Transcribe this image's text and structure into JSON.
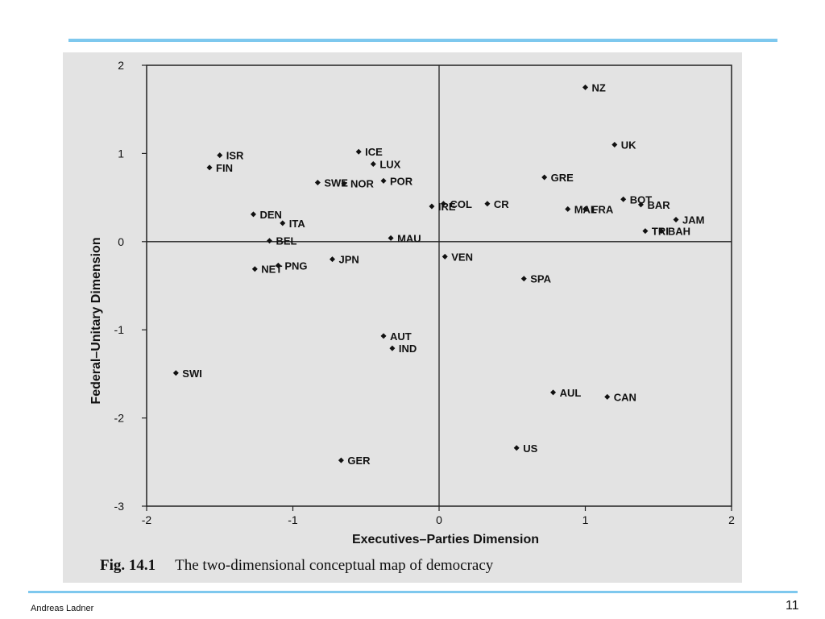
{
  "slide": {
    "author": "Andreas Ladner",
    "page_number": "11",
    "accent_color": "#7ec8ee"
  },
  "figure": {
    "number": "Fig. 14.1",
    "caption": "The two-dimensional conceptual map of democracy"
  },
  "chart_data": {
    "type": "scatter",
    "xlabel": "Executives–Parties Dimension",
    "ylabel": "Federal–Unitary Dimension",
    "xlim": [
      -2,
      2
    ],
    "ylim": [
      -3,
      2
    ],
    "x_ticks": [
      "-2",
      "-1",
      "0",
      "1",
      "2"
    ],
    "y_ticks": [
      "2",
      "1",
      "0",
      "-1",
      "-2",
      "-3"
    ],
    "grid": false,
    "zero_lines": true,
    "marker_color": "#111111",
    "points": [
      {
        "label": "NZ",
        "x": 1.0,
        "y": 1.75
      },
      {
        "label": "UK",
        "x": 1.2,
        "y": 1.1
      },
      {
        "label": "ISR",
        "x": -1.5,
        "y": 0.98
      },
      {
        "label": "FIN",
        "x": -1.57,
        "y": 0.84
      },
      {
        "label": "ICE",
        "x": -0.55,
        "y": 1.02
      },
      {
        "label": "LUX",
        "x": -0.45,
        "y": 0.88
      },
      {
        "label": "SWE",
        "x": -0.83,
        "y": 0.67
      },
      {
        "label": "NOR",
        "x": -0.65,
        "y": 0.66
      },
      {
        "label": "POR",
        "x": -0.38,
        "y": 0.69
      },
      {
        "label": "GRE",
        "x": 0.72,
        "y": 0.73
      },
      {
        "label": "BOT",
        "x": 1.26,
        "y": 0.48
      },
      {
        "label": "IRE",
        "x": -0.05,
        "y": 0.4
      },
      {
        "label": "COL",
        "x": 0.03,
        "y": 0.43
      },
      {
        "label": "CR",
        "x": 0.33,
        "y": 0.43
      },
      {
        "label": "MAL",
        "x": 0.88,
        "y": 0.37
      },
      {
        "label": "FRA",
        "x": 1.0,
        "y": 0.37
      },
      {
        "label": "BAR",
        "x": 1.38,
        "y": 0.42
      },
      {
        "label": "JAM",
        "x": 1.62,
        "y": 0.25
      },
      {
        "label": "TRI",
        "x": 1.41,
        "y": 0.12
      },
      {
        "label": "BAH",
        "x": 1.52,
        "y": 0.12
      },
      {
        "label": "DEN",
        "x": -1.27,
        "y": 0.31
      },
      {
        "label": "ITA",
        "x": -1.07,
        "y": 0.21
      },
      {
        "label": "BEL",
        "x": -1.16,
        "y": 0.01
      },
      {
        "label": "MAU",
        "x": -0.33,
        "y": 0.04
      },
      {
        "label": "JPN",
        "x": -0.73,
        "y": -0.2
      },
      {
        "label": "PNG",
        "x": -1.1,
        "y": -0.27
      },
      {
        "label": "NET",
        "x": -1.26,
        "y": -0.31
      },
      {
        "label": "VEN",
        "x": 0.04,
        "y": -0.17
      },
      {
        "label": "SPA",
        "x": 0.58,
        "y": -0.42
      },
      {
        "label": "AUT",
        "x": -0.38,
        "y": -1.07
      },
      {
        "label": "IND",
        "x": -0.32,
        "y": -1.21
      },
      {
        "label": "SWI",
        "x": -1.8,
        "y": -1.49
      },
      {
        "label": "AUL",
        "x": 0.78,
        "y": -1.71
      },
      {
        "label": "CAN",
        "x": 1.15,
        "y": -1.76
      },
      {
        "label": "US",
        "x": 0.53,
        "y": -2.34
      },
      {
        "label": "GER",
        "x": -0.67,
        "y": -2.48
      }
    ]
  }
}
